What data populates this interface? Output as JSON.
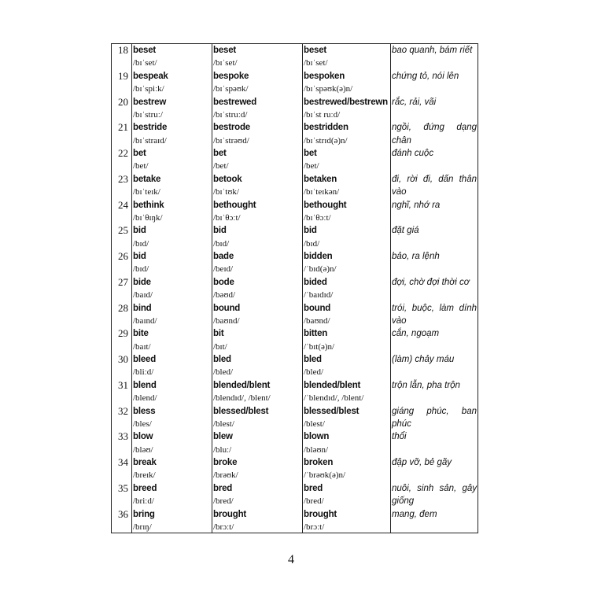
{
  "page_number": "4",
  "rows": [
    {
      "no": "18",
      "base": "beset",
      "base_ipa": "/bɪˈset/",
      "past": "beset",
      "past_ipa": "/bɪˈset/",
      "pp": "beset",
      "pp_ipa": "/bɪˈset/",
      "meaning": "bao quanh, bám riết"
    },
    {
      "no": "19",
      "base": "bespeak",
      "base_ipa": "/bɪˈspiːk/",
      "past": "bespoke",
      "past_ipa": "/bɪˈspəʊk/",
      "pp": "bespoken",
      "pp_ipa": "/bɪˈspəʊk(ə)n/",
      "meaning": "chứng tỏ, nói lên"
    },
    {
      "no": "20",
      "base": "bestrew",
      "base_ipa": "/bɪˈstruː/",
      "past": "bestrewed",
      "past_ipa": "/bɪˈstruːd/",
      "pp": "bestrewed/bestrewn",
      "pp_ipa": "/bɪˈst ruːd/",
      "meaning": "rắc, rải, vãi"
    },
    {
      "no": "21",
      "base": "bestride",
      "base_ipa": "/bɪˈstraɪd/",
      "past": "bestrode",
      "past_ipa": "/bɪˈstrəʊd/",
      "pp": "bestridden",
      "pp_ipa": "/bɪˈstrɪd(ə)n/",
      "meaning": "ngồi, đứng dạng chân"
    },
    {
      "no": "22",
      "base": "bet",
      "base_ipa": "/bet/",
      "past": "bet",
      "past_ipa": "/bet/",
      "pp": "bet",
      "pp_ipa": "/bet/",
      "meaning": "đánh cuộc"
    },
    {
      "no": "23",
      "base": "betake",
      "base_ipa": "/bɪˈteɪk/",
      "past": "betook",
      "past_ipa": "/bɪˈtʊk/",
      "pp": "betaken",
      "pp_ipa": "/bɪˈteɪkən/",
      "meaning": "đi, rời đi, dấn thân vào"
    },
    {
      "no": "24",
      "base": "bethink",
      "base_ipa": "/bɪˈθɪŋk/",
      "past": "bethought",
      "past_ipa": "/bɪˈθɔːt/",
      "pp": "bethought",
      "pp_ipa": "/bɪˈθɔːt/",
      "meaning": "nghĩ, nhớ ra"
    },
    {
      "no": "25",
      "base": "bid",
      "base_ipa": "/bɪd/",
      "past": "bid",
      "past_ipa": "/bɪd/",
      "pp": "bid",
      "pp_ipa": "/bɪd/",
      "meaning": "đặt giá"
    },
    {
      "no": "26",
      "base": "bid",
      "base_ipa": "/bɪd/",
      "past": "bade",
      "past_ipa": "/beɪd/",
      "pp": "bidden",
      "pp_ipa": "/ˈbɪd(ə)n/",
      "meaning": "bảo, ra lệnh"
    },
    {
      "no": "27",
      "base": "bide",
      "base_ipa": "/baɪd/",
      "past": "bode",
      "past_ipa": "/bəʊd/",
      "pp": "bided",
      "pp_ipa": "/ˈbaɪdɪd/",
      "meaning": "đợi, chờ đợi thời cơ"
    },
    {
      "no": "28",
      "base": "bind",
      "base_ipa": "/baɪnd/",
      "past": "bound",
      "past_ipa": "/baʊnd/",
      "pp": "bound",
      "pp_ipa": "/baʊnd/",
      "meaning": "trói, buộc, làm dính vào"
    },
    {
      "no": "29",
      "base": "bite",
      "base_ipa": "/baɪt/",
      "past": "bit",
      "past_ipa": "/bɪt/",
      "pp": "bitten",
      "pp_ipa": "/ˈbɪt(ə)n/",
      "meaning": "cắn, ngoạm"
    },
    {
      "no": "30",
      "base": "bleed",
      "base_ipa": "/bliːd/",
      "past": "bled",
      "past_ipa": "/bled/",
      "pp": "bled",
      "pp_ipa": "/bled/",
      "meaning": "(làm) chảy máu"
    },
    {
      "no": "31",
      "base": "blend",
      "base_ipa": "/blend/",
      "past": "blended/blent",
      "past_ipa": "/blendɪd/, /blent/",
      "pp": "blended/blent",
      "pp_ipa": "/ˈblendɪd/, /blent/",
      "meaning": "trộn lẫn, pha trộn"
    },
    {
      "no": "32",
      "base": "bless",
      "base_ipa": "/bles/",
      "past": "blessed/blest",
      "past_ipa": "/blest/",
      "pp": "blessed/blest",
      "pp_ipa": "/blest/",
      "meaning": "giáng phúc, ban phúc"
    },
    {
      "no": "33",
      "base": "blow",
      "base_ipa": "/bləʊ/",
      "past": "blew",
      "past_ipa": "/bluː/",
      "pp": "blown",
      "pp_ipa": "/bləʊn/",
      "meaning": "thổi"
    },
    {
      "no": "34",
      "base": "break",
      "base_ipa": "/breɪk/",
      "past": "broke",
      "past_ipa": "/brəʊk/",
      "pp": "broken",
      "pp_ipa": "/ˈbrəʊk(ə)n/",
      "meaning": "đập vỡ, bẻ gãy"
    },
    {
      "no": "35",
      "base": "breed",
      "base_ipa": "/briːd/",
      "past": "bred",
      "past_ipa": "/bred/",
      "pp": "bred",
      "pp_ipa": "/bred/",
      "meaning": "nuôi, sinh sản, gây giống"
    },
    {
      "no": "36",
      "base": "bring",
      "base_ipa": "/brɪŋ/",
      "past": "brought",
      "past_ipa": "/brɔːt/",
      "pp": "brought",
      "pp_ipa": "/brɔːt/",
      "meaning": "mang, đem"
    }
  ]
}
